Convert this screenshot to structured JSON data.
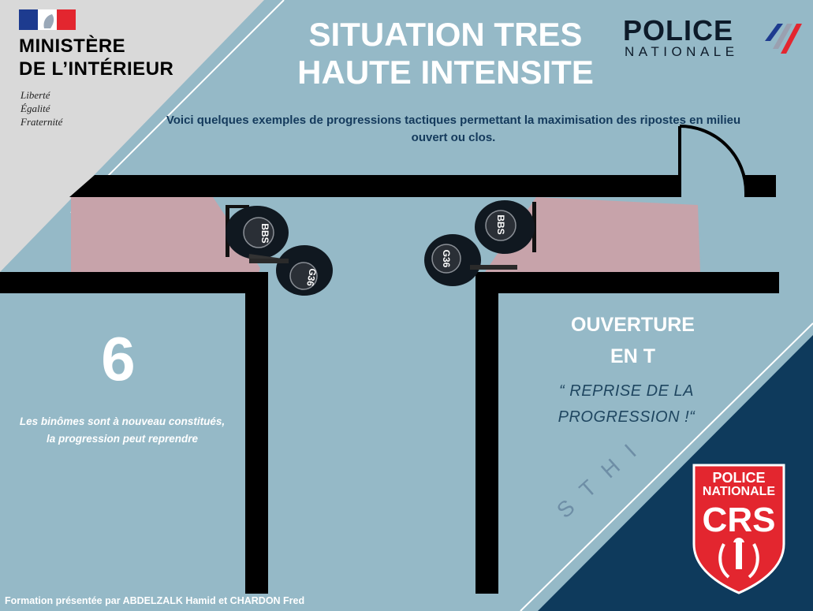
{
  "header": {
    "title_line1": "SITUATION TRES",
    "title_line2": "HAUTE INTENSITE",
    "subtitle": "Voici quelques exemples de progressions tactiques permettant la maximisation des ripostes en milieu ouvert ou clos."
  },
  "ministry": {
    "line1": "MINISTÈRE",
    "line2": "DE L’INTÉRIEUR",
    "motto1": "Liberté",
    "motto2": "Égalité",
    "motto3": "Fraternité"
  },
  "police_logo": {
    "word": "POLICE",
    "sub": "NATIONALE"
  },
  "step": {
    "number": "6",
    "description": "Les binômes sont à nouveau constitués, la progression peut reprendre"
  },
  "situation": {
    "title_line1": "OUVERTURE",
    "title_line2": "EN T",
    "quote_line1": "“ REPRISE DE LA",
    "quote_line2": "PROGRESSION !“"
  },
  "watermark": "STHI",
  "crs_badge": {
    "line1": "POLICE",
    "line2": "NATIONALE",
    "line3": "CRS"
  },
  "operators": [
    {
      "label": "BBS",
      "role": "shield"
    },
    {
      "label": "G36",
      "role": "rifle"
    },
    {
      "label": "BBS",
      "role": "shield"
    },
    {
      "label": "G36",
      "role": "rifle"
    }
  ],
  "credit": "Formation présentée par ABDELZALK Hamid et CHARDON Fred",
  "colors": {
    "background": "#95b9c7",
    "corner_grey": "#d9d9d9",
    "corner_navy": "#0e3a5c",
    "wall": "#000000",
    "danger_zone": "#c7a3aa",
    "title": "#ffffff",
    "subtitle": "#143a5c",
    "crs_red": "#e3262f"
  }
}
